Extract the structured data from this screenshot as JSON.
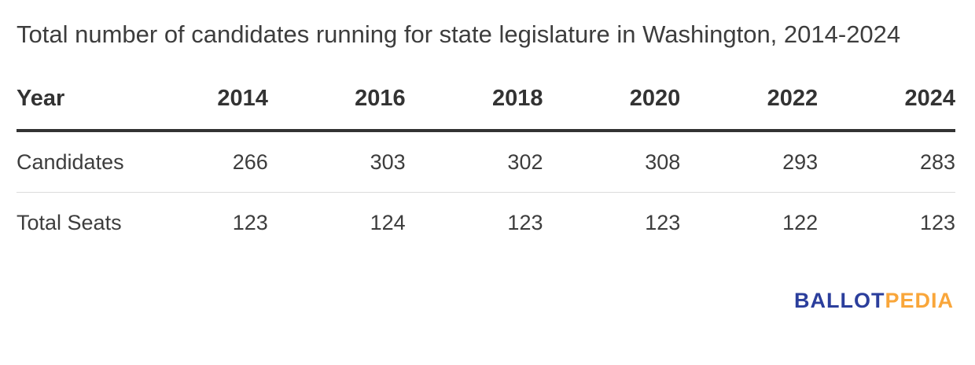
{
  "title": "Total number of candidates running for state legislature in Washington, 2014-2024",
  "table": {
    "header": {
      "label": "Year",
      "years": [
        "2014",
        "2016",
        "2018",
        "2020",
        "2022",
        "2024"
      ]
    },
    "rows": [
      {
        "label": "Candidates",
        "values": [
          "266",
          "303",
          "302",
          "308",
          "293",
          "283"
        ]
      },
      {
        "label": "Total Seats",
        "values": [
          "123",
          "124",
          "123",
          "123",
          "122",
          "123"
        ]
      }
    ]
  },
  "logo": {
    "part1": "BALLOT",
    "part2": "PEDIA",
    "part1_color": "#2b3e9c",
    "part2_color": "#f9a63a"
  },
  "colors": {
    "text": "#3d3d3d",
    "header_text": "#333333",
    "heavy_rule": "#333333",
    "light_rule": "#dcdcdc",
    "background": "#ffffff"
  },
  "chart_data": {
    "type": "table",
    "title": "Total number of candidates running for state legislature in Washington, 2014-2024",
    "categories": [
      "2014",
      "2016",
      "2018",
      "2020",
      "2022",
      "2024"
    ],
    "series": [
      {
        "name": "Candidates",
        "values": [
          266,
          303,
          302,
          308,
          293,
          283
        ]
      },
      {
        "name": "Total Seats",
        "values": [
          123,
          124,
          123,
          123,
          122,
          123
        ]
      }
    ],
    "layout": {
      "first_column_header": "Year",
      "grid": "horizontal-rules-only",
      "source_brand": "BALLOTPEDIA"
    }
  }
}
